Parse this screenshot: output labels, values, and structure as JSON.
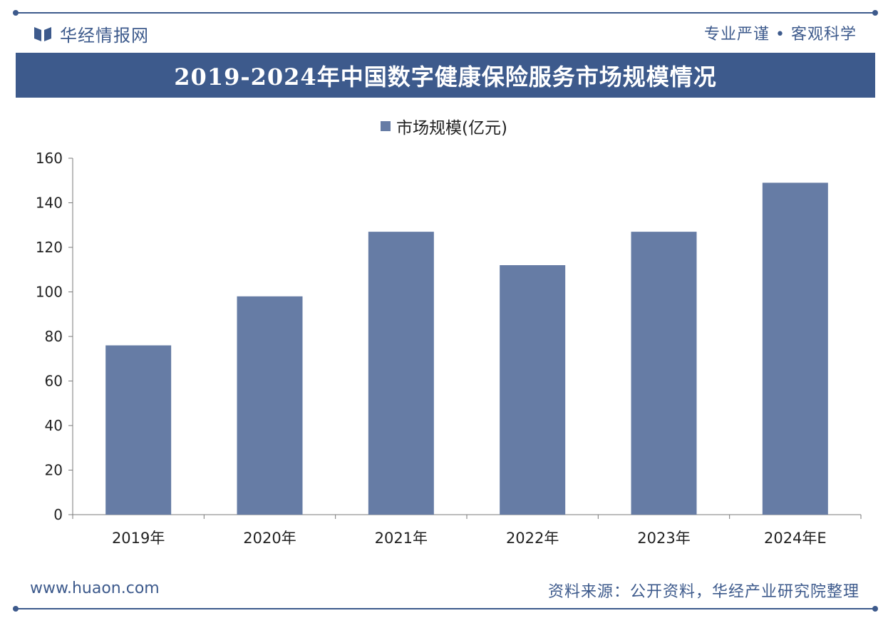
{
  "header": {
    "brand_name": "华经情报网",
    "slogan": "专业严谨 • 客观科学",
    "brand_icon": "book-logo-icon"
  },
  "colors": {
    "primary": "#3d5a8c",
    "bar": "#667ca5",
    "axis": "#7a7a7a"
  },
  "chart_data": {
    "type": "bar",
    "title": "2019-2024年中国数字健康保险服务市场规模情况",
    "categories": [
      "2019年",
      "2020年",
      "2021年",
      "2022年",
      "2023年",
      "2024年E"
    ],
    "series": [
      {
        "name": "市场规模(亿元)",
        "values": [
          76,
          98,
          127,
          112,
          127,
          149
        ]
      }
    ],
    "ylim": [
      0,
      160
    ],
    "yticks": [
      0,
      20,
      40,
      60,
      80,
      100,
      120,
      140,
      160
    ],
    "xlabel": "",
    "ylabel": "",
    "grid": false,
    "legend_position": "top-center"
  },
  "footer": {
    "website": "www.huaon.com",
    "source": "资料来源：公开资料，华经产业研究院整理"
  }
}
